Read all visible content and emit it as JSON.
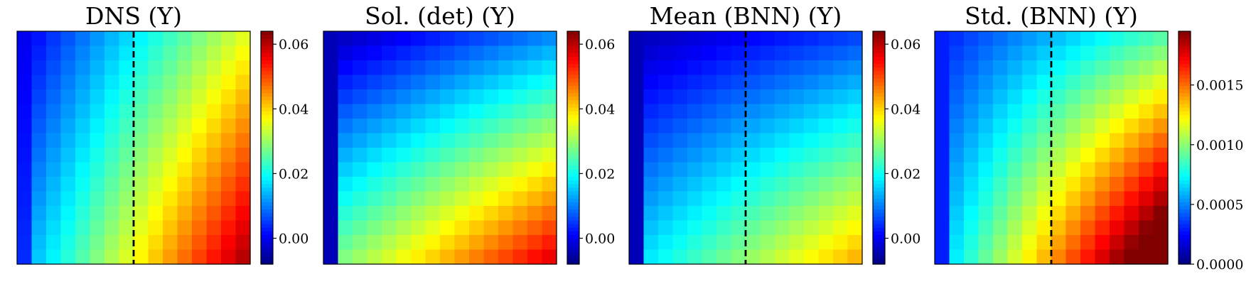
{
  "chart_data": [
    {
      "type": "heatmap",
      "title": "DNS (Y)",
      "grid_size": 16,
      "dashed_line_col": 7.5,
      "colorbar": {
        "vmin": -0.008,
        "vmax": 0.064,
        "ticks": [
          0.0,
          0.02,
          0.04,
          0.06
        ],
        "tick_labels": [
          "0.00",
          "0.02",
          "0.04",
          "0.06"
        ]
      },
      "model": {
        "base": 0.0,
        "row_gain": 0.012,
        "col_gain": 0.035,
        "interaction": 0.013,
        "left_bias": 0.004
      }
    },
    {
      "type": "heatmap",
      "title": "Sol. (det) (Y)",
      "grid_size": 16,
      "colorbar": {
        "vmin": -0.008,
        "vmax": 0.064,
        "ticks": [
          0.0,
          0.02,
          0.04,
          0.06
        ],
        "tick_labels": [
          "0.00",
          "0.02",
          "0.04",
          "0.06"
        ]
      },
      "model": {
        "base": -0.004,
        "row_gain": 0.03,
        "col_gain": 0.015,
        "interaction": 0.015,
        "left_bias": 0.0
      }
    },
    {
      "type": "heatmap",
      "title": "Mean (BNN) (Y)",
      "grid_size": 16,
      "dashed_line_col": 7.5,
      "colorbar": {
        "vmin": -0.008,
        "vmax": 0.064,
        "ticks": [
          0.0,
          0.02,
          0.04,
          0.06
        ],
        "tick_labels": [
          "0.00",
          "0.02",
          "0.04",
          "0.06"
        ]
      },
      "model": {
        "base": -0.004,
        "row_gain": 0.02,
        "col_gain": 0.01,
        "interaction": 0.016,
        "left_bias": 0.0
      }
    },
    {
      "type": "heatmap",
      "title": "Std. (BNN) (Y)",
      "grid_size": 16,
      "dashed_line_col": 7.5,
      "colorbar": {
        "vmin": 0.0,
        "vmax": 0.00195,
        "ticks": [
          0.0,
          0.0005,
          0.001,
          0.0015
        ],
        "tick_labels": [
          "0.0000",
          "0.0005",
          "0.0010",
          "0.0015"
        ]
      },
      "model": {
        "base": 0.0003,
        "row_gain": 0.0003,
        "col_gain": 0.0006,
        "interaction": 0.001,
        "left_bias": 0.0
      }
    }
  ]
}
